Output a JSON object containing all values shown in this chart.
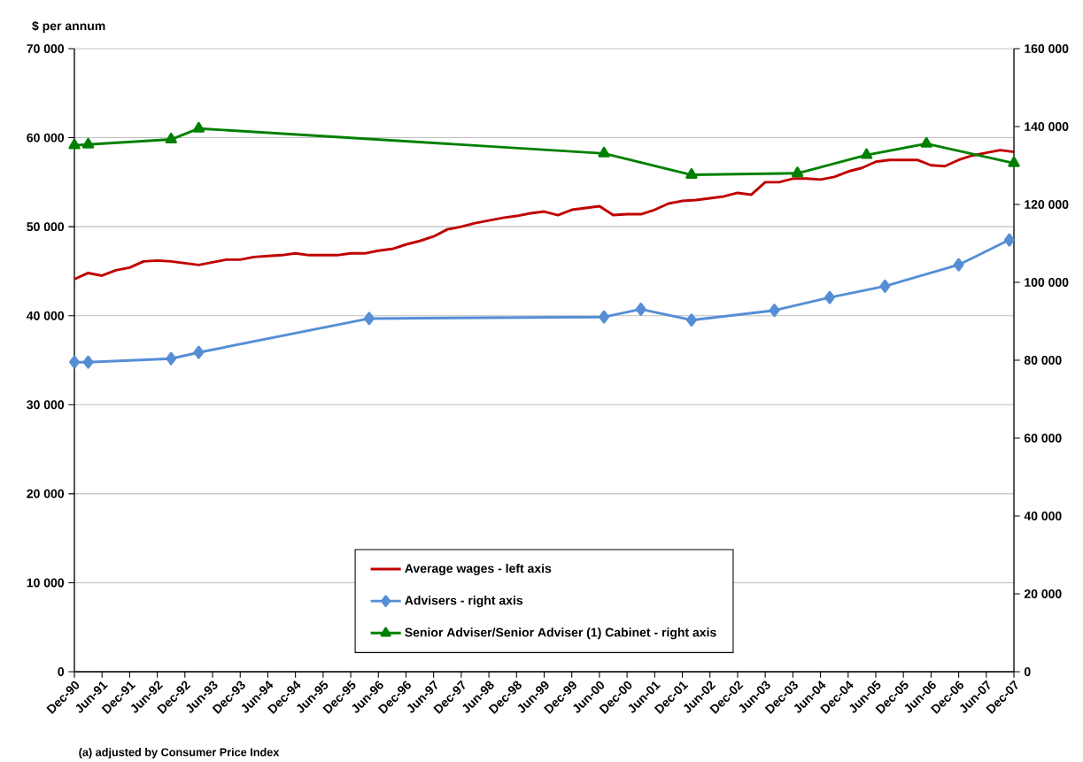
{
  "chart_data": {
    "type": "line",
    "ylabel": "$ per annum",
    "annotations": [
      "(a) adjusted by Consumer Price Index"
    ],
    "xlim": [
      "1990-12",
      "2007-12"
    ],
    "xticks": [
      {
        "value": "1990-12",
        "label": "Dec-90"
      },
      {
        "value": "1991-06",
        "label": "Jun-91"
      },
      {
        "value": "1991-12",
        "label": "Dec-91"
      },
      {
        "value": "1992-06",
        "label": "Jun-92"
      },
      {
        "value": "1992-12",
        "label": "Dec-92"
      },
      {
        "value": "1993-06",
        "label": "Jun-93"
      },
      {
        "value": "1993-12",
        "label": "Dec-93"
      },
      {
        "value": "1994-06",
        "label": "Jun-94"
      },
      {
        "value": "1994-12",
        "label": "Dec-94"
      },
      {
        "value": "1995-06",
        "label": "Jun-95"
      },
      {
        "value": "1995-12",
        "label": "Dec-95"
      },
      {
        "value": "1996-06",
        "label": "Jun-96"
      },
      {
        "value": "1996-12",
        "label": "Dec-96"
      },
      {
        "value": "1997-06",
        "label": "Jun-97"
      },
      {
        "value": "1997-12",
        "label": "Dec-97"
      },
      {
        "value": "1998-06",
        "label": "Jun-98"
      },
      {
        "value": "1998-12",
        "label": "Dec-98"
      },
      {
        "value": "1999-06",
        "label": "Jun-99"
      },
      {
        "value": "1999-12",
        "label": "Dec-99"
      },
      {
        "value": "2000-06",
        "label": "Jun-00"
      },
      {
        "value": "2000-12",
        "label": "Dec-00"
      },
      {
        "value": "2001-06",
        "label": "Jun-01"
      },
      {
        "value": "2001-12",
        "label": "Dec-01"
      },
      {
        "value": "2002-06",
        "label": "Jun-02"
      },
      {
        "value": "2002-12",
        "label": "Dec-02"
      },
      {
        "value": "2003-06",
        "label": "Jun-03"
      },
      {
        "value": "2003-12",
        "label": "Dec-03"
      },
      {
        "value": "2004-06",
        "label": "Jun-04"
      },
      {
        "value": "2004-12",
        "label": "Dec-04"
      },
      {
        "value": "2005-06",
        "label": "Jun-05"
      },
      {
        "value": "2005-12",
        "label": "Dec-05"
      },
      {
        "value": "2006-06",
        "label": "Jun-06"
      },
      {
        "value": "2006-12",
        "label": "Dec-06"
      },
      {
        "value": "2007-06",
        "label": "Jun-07"
      },
      {
        "value": "2007-12",
        "label": "Dec-07"
      }
    ],
    "ylim": [
      0,
      70000
    ],
    "yticks": [
      {
        "value": 0,
        "label": "0"
      },
      {
        "value": 10000,
        "label": "10 000"
      },
      {
        "value": 20000,
        "label": "20 000"
      },
      {
        "value": 30000,
        "label": "30 000"
      },
      {
        "value": 40000,
        "label": "40 000"
      },
      {
        "value": 50000,
        "label": "50 000"
      },
      {
        "value": 60000,
        "label": "60 000"
      },
      {
        "value": 70000,
        "label": "70 000"
      }
    ],
    "y2lim": [
      0,
      160000
    ],
    "y2ticks": [
      {
        "value": 0,
        "label": "0"
      },
      {
        "value": 20000,
        "label": "20 000"
      },
      {
        "value": 40000,
        "label": "40 000"
      },
      {
        "value": 60000,
        "label": "60 000"
      },
      {
        "value": 80000,
        "label": "80 000"
      },
      {
        "value": 100000,
        "label": "100 000"
      },
      {
        "value": 120000,
        "label": "120 000"
      },
      {
        "value": 140000,
        "label": "140 000"
      },
      {
        "value": 160000,
        "label": "160 000"
      }
    ],
    "grid": "y",
    "legend": "bottom",
    "line_style": "solid",
    "series": [
      {
        "name": "Average wages - left axis",
        "color": "#c00000",
        "marker": "none",
        "x": [
          "1990-12",
          "1991-03",
          "1991-06",
          "1991-09",
          "1991-12",
          "1992-03",
          "1992-06",
          "1992-09",
          "1992-12",
          "1993-03",
          "1993-06",
          "1993-09",
          "1993-12",
          "1994-03",
          "1994-06",
          "1994-09",
          "1994-12",
          "1995-03",
          "1995-06",
          "1995-09",
          "1995-12",
          "1996-03",
          "1996-06",
          "1996-09",
          "1996-12",
          "1997-03",
          "1997-06",
          "1997-09",
          "1997-12",
          "1998-03",
          "1998-06",
          "1998-09",
          "1998-12",
          "1999-03",
          "1999-06",
          "1999-09",
          "1999-12",
          "2000-03",
          "2000-06",
          "2000-09",
          "2000-12",
          "2001-03",
          "2001-06",
          "2001-09",
          "2001-12",
          "2002-03",
          "2002-06",
          "2002-09",
          "2002-12",
          "2003-03",
          "2003-06",
          "2003-09",
          "2003-12",
          "2004-03",
          "2004-06",
          "2004-09",
          "2004-12",
          "2005-03",
          "2005-06",
          "2005-09",
          "2005-12",
          "2006-03",
          "2006-06",
          "2006-09",
          "2006-12",
          "2007-03",
          "2007-06",
          "2007-09",
          "2007-12"
        ],
        "values": [
          44100,
          44800,
          44500,
          45100,
          45400,
          46100,
          46200,
          46100,
          45900,
          45700,
          46000,
          46300,
          46300,
          46600,
          46700,
          46800,
          47000,
          46800,
          46800,
          46800,
          47000,
          47000,
          47300,
          47500,
          48000,
          48400,
          48900,
          49700,
          50000,
          50400,
          50700,
          51000,
          51200,
          51500,
          51700,
          51300,
          51900,
          52100,
          52300,
          51300,
          51400,
          51400,
          51900,
          52600,
          52900,
          53000,
          53200,
          53400,
          53800,
          53600,
          55000,
          55000,
          55400,
          55400,
          55300,
          55600,
          56200,
          56600,
          57300,
          57500,
          57500,
          57500,
          56900,
          56800,
          57500,
          58000,
          58300,
          58600,
          58400
        ]
      },
      {
        "name": "Advisers - right axis",
        "color": "#558ed5",
        "marker": "diamond",
        "axis": "y2",
        "x": [
          "1990-12",
          "1991-03",
          "1992-09",
          "1993-03",
          "1996-04",
          "2000-07",
          "2001-03",
          "2002-02",
          "2003-08",
          "2004-08",
          "2005-08",
          "2006-12",
          "2007-11"
        ],
        "values": [
          79500,
          79500,
          80400,
          82000,
          90700,
          91100,
          93100,
          90300,
          92800,
          96100,
          99000,
          104500,
          110900
        ]
      },
      {
        "name": "Senior Adviser/Senior Adviser (1) Cabinet - right axis",
        "color": "#008000",
        "marker": "triangle",
        "axis": "y2",
        "x": [
          "1990-12",
          "1991-03",
          "1992-09",
          "1993-03",
          "2000-07",
          "2002-02",
          "2004-01",
          "2005-04",
          "2006-05",
          "2007-12"
        ],
        "values": [
          135200,
          135400,
          136700,
          139500,
          133100,
          127600,
          128000,
          132700,
          135600,
          130600
        ]
      }
    ]
  }
}
